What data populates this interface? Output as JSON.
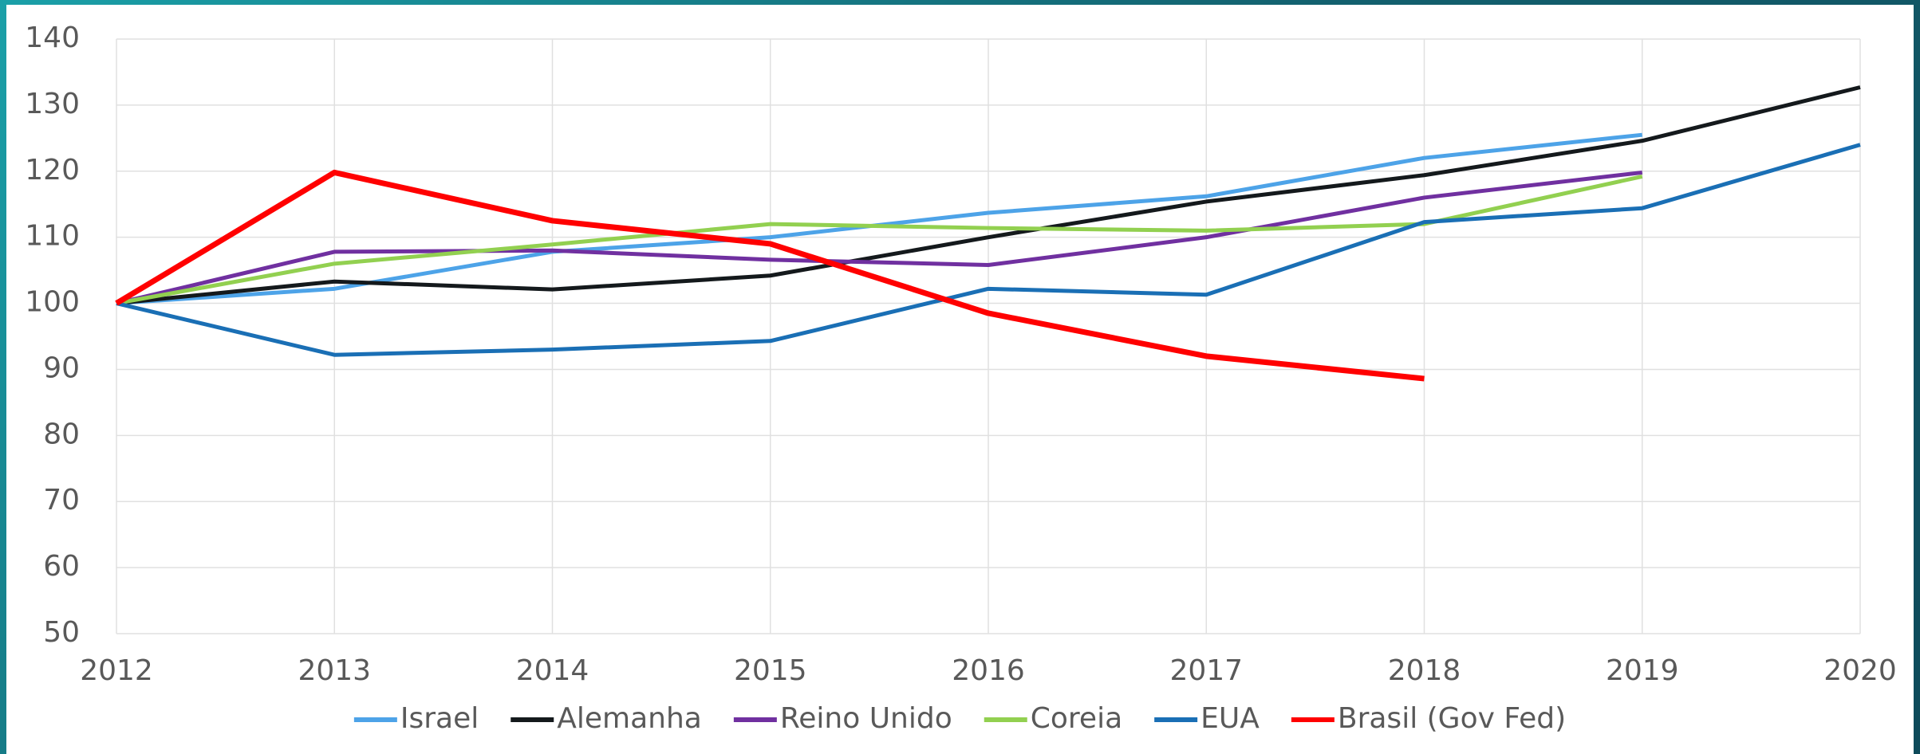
{
  "chart_data": {
    "type": "line",
    "x": [
      2012,
      2013,
      2014,
      2015,
      2016,
      2017,
      2018,
      2019,
      2020
    ],
    "series": [
      {
        "name": "Israel",
        "color": "#4da3e8",
        "values": [
          100,
          102.2,
          107.8,
          110,
          113.7,
          116.2,
          122,
          125.5,
          null
        ]
      },
      {
        "name": "Alemanha",
        "color": "#14191c",
        "values": [
          100,
          103.3,
          102.1,
          104.2,
          110,
          115.4,
          119.4,
          124.6,
          132.7
        ]
      },
      {
        "name": "Reino Unido",
        "color": "#7030a0",
        "values": [
          100,
          107.8,
          108,
          106.6,
          105.8,
          110,
          116,
          119.8,
          null
        ]
      },
      {
        "name": "Coreia",
        "color": "#92d050",
        "values": [
          100,
          106,
          108.9,
          112,
          111.4,
          111,
          112,
          119.2,
          null
        ]
      },
      {
        "name": "EUA",
        "color": "#1a6fb5",
        "values": [
          100,
          92.2,
          93,
          94.3,
          102.2,
          101.3,
          112.3,
          114.4,
          124
        ]
      },
      {
        "name": "Brasil (Gov Fed)",
        "color": "#ff0000",
        "values": [
          100,
          119.8,
          112.5,
          109,
          98.5,
          92,
          88.6,
          null,
          null
        ]
      }
    ],
    "xlim": [
      2012,
      2020
    ],
    "xticks": [
      2012,
      2013,
      2014,
      2015,
      2016,
      2017,
      2018,
      2019,
      2020
    ],
    "ylim": [
      50,
      140
    ],
    "yticks": [
      50,
      60,
      70,
      80,
      90,
      100,
      110,
      120,
      130,
      140
    ],
    "grid": true,
    "legend": "bottom"
  }
}
